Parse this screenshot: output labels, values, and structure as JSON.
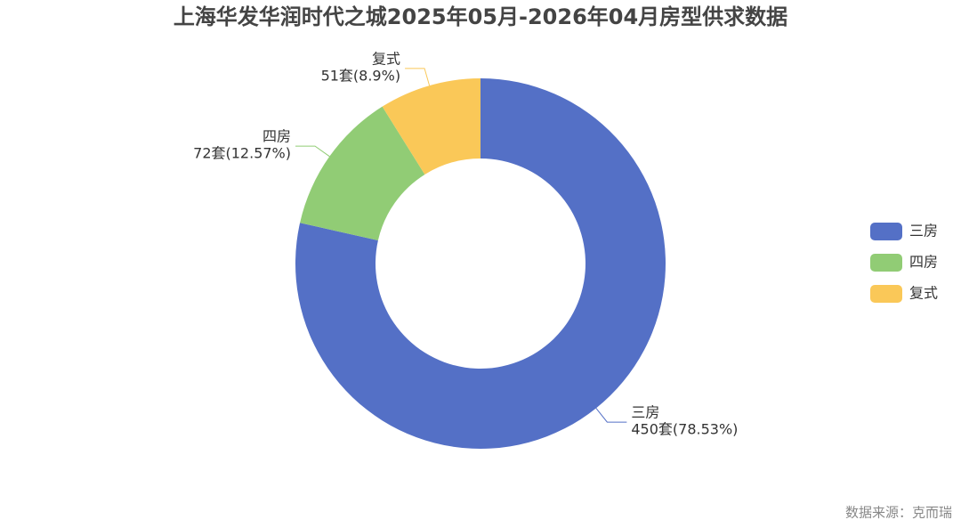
{
  "chart_data": {
    "type": "donut",
    "title": "上海华发华润时代之城2025年05月-2026年04月房型供求数据",
    "categories": [
      "三房",
      "四房",
      "复式"
    ],
    "values": [
      450,
      72,
      51
    ],
    "value_labels": [
      "450套(78.53%)",
      "72套(12.57%)",
      "51套(8.9%)"
    ],
    "colors": [
      "#5470c6",
      "#91cc75",
      "#fac858"
    ],
    "legend": "right",
    "source": "数据来源：克而瑞"
  }
}
